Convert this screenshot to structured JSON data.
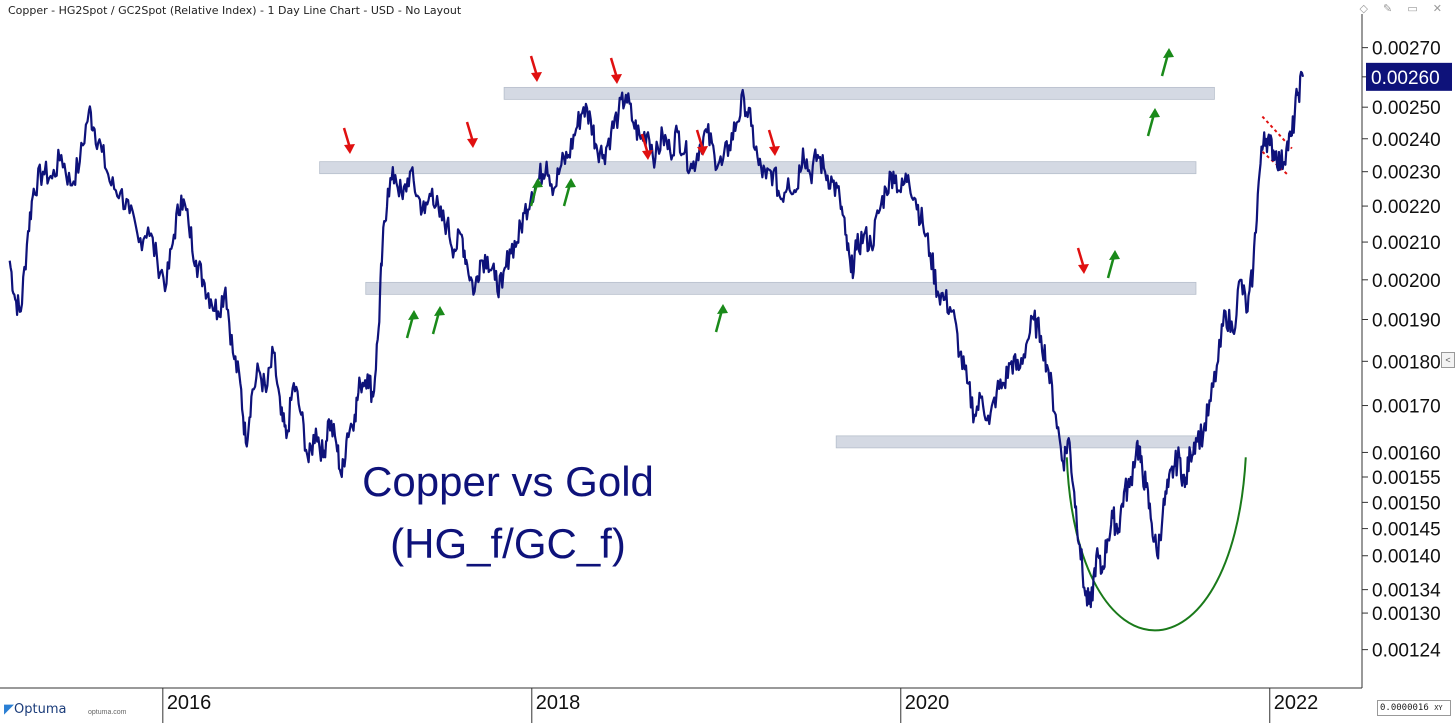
{
  "header": {
    "title": "Copper - HG2Spot / GC2Spot (Relative Index) - 1 Day Line Chart - USD - No Layout"
  },
  "footer": {
    "brand": "Optuma",
    "brand_url": "optuma.com",
    "xy_readout": "0.0000016",
    "xy_label": "XY"
  },
  "colors": {
    "price_line": "#0e127a",
    "band": "#cfd5e0",
    "resistance_arrow": "#e01010",
    "support_arrow": "#1a8a1a",
    "bowl": "#1a7a1a",
    "trendline": "#e01010",
    "last_value_bg": "#0e127a"
  },
  "chart_data": {
    "type": "line",
    "title": "Copper vs Gold",
    "subtitle": "(HG_f/GC_f)",
    "yscale": "log",
    "ylim": [
      0.00118,
      0.00282
    ],
    "xlim": [
      2015.15,
      2022.5
    ],
    "y_ticks": [
      "0.00270",
      "0.00260",
      "0.00250",
      "0.00240",
      "0.00230",
      "0.00220",
      "0.00210",
      "0.00200",
      "0.00190",
      "0.00180",
      "0.00170",
      "0.00160",
      "0.00155",
      "0.00150",
      "0.00145",
      "0.00140",
      "0.00134",
      "0.00130",
      "0.00124"
    ],
    "x_ticks": [
      "2016",
      "2018",
      "2020",
      "2022"
    ],
    "last_value": "0.00260",
    "bands": [
      {
        "from": 2017.85,
        "to": 2021.7,
        "y": 0.002545
      },
      {
        "from": 2016.85,
        "to": 2021.6,
        "y": 0.002312
      },
      {
        "from": 2017.1,
        "to": 2021.6,
        "y": 0.001978
      },
      {
        "from": 2019.65,
        "to": 2021.6,
        "y": 0.001622
      }
    ],
    "series": [
      {
        "points": [
          [
            2015.17,
            0.00205
          ],
          [
            2015.2,
            0.00195
          ],
          [
            2015.23,
            0.00192
          ],
          [
            2015.27,
            0.00213
          ],
          [
            2015.3,
            0.00225
          ],
          [
            2015.35,
            0.0023
          ],
          [
            2015.4,
            0.00228
          ],
          [
            2015.45,
            0.00235
          ],
          [
            2015.5,
            0.00226
          ],
          [
            2015.55,
            0.00233
          ],
          [
            2015.6,
            0.00249
          ],
          [
            2015.63,
            0.00243
          ],
          [
            2015.67,
            0.00236
          ],
          [
            2015.72,
            0.00226
          ],
          [
            2015.77,
            0.00224
          ],
          [
            2015.82,
            0.00218
          ],
          [
            2015.87,
            0.0021
          ],
          [
            2015.92,
            0.00214
          ],
          [
            2015.97,
            0.00205
          ],
          [
            2016.02,
            0.00199
          ],
          [
            2016.06,
            0.00212
          ],
          [
            2016.1,
            0.00223
          ],
          [
            2016.14,
            0.00215
          ],
          [
            2016.18,
            0.00205
          ],
          [
            2016.22,
            0.002
          ],
          [
            2016.26,
            0.00195
          ],
          [
            2016.3,
            0.00192
          ],
          [
            2016.34,
            0.00198
          ],
          [
            2016.38,
            0.00182
          ],
          [
            2016.42,
            0.00175
          ],
          [
            2016.45,
            0.00162
          ],
          [
            2016.48,
            0.00172
          ],
          [
            2016.52,
            0.00178
          ],
          [
            2016.56,
            0.00173
          ],
          [
            2016.6,
            0.00182
          ],
          [
            2016.64,
            0.00168
          ],
          [
            2016.67,
            0.00163
          ],
          [
            2016.71,
            0.00175
          ],
          [
            2016.75,
            0.00168
          ],
          [
            2016.79,
            0.00158
          ],
          [
            2016.83,
            0.00165
          ],
          [
            2016.87,
            0.00159
          ],
          [
            2016.9,
            0.00167
          ],
          [
            2016.94,
            0.00162
          ],
          [
            2016.97,
            0.00155
          ],
          [
            2017.0,
            0.00164
          ],
          [
            2017.04,
            0.00168
          ],
          [
            2017.07,
            0.00175
          ],
          [
            2017.11,
            0.00177
          ],
          [
            2017.14,
            0.00172
          ],
          [
            2017.17,
            0.00188
          ],
          [
            2017.19,
            0.00208
          ],
          [
            2017.22,
            0.00225
          ],
          [
            2017.26,
            0.00229
          ],
          [
            2017.3,
            0.00222
          ],
          [
            2017.34,
            0.0023
          ],
          [
            2017.38,
            0.00223
          ],
          [
            2017.42,
            0.00218
          ],
          [
            2017.46,
            0.00225
          ],
          [
            2017.5,
            0.00217
          ],
          [
            2017.54,
            0.00215
          ],
          [
            2017.58,
            0.00208
          ],
          [
            2017.62,
            0.00212
          ],
          [
            2017.65,
            0.00204
          ],
          [
            2017.69,
            0.00197
          ],
          [
            2017.72,
            0.00205
          ],
          [
            2017.76,
            0.00206
          ],
          [
            2017.8,
            0.002
          ],
          [
            2017.84,
            0.00198
          ],
          [
            2017.88,
            0.00208
          ],
          [
            2017.92,
            0.0021
          ],
          [
            2017.96,
            0.00218
          ],
          [
            2018.0,
            0.00224
          ],
          [
            2018.04,
            0.00228
          ],
          [
            2018.08,
            0.00233
          ],
          [
            2018.12,
            0.00225
          ],
          [
            2018.16,
            0.00232
          ],
          [
            2018.2,
            0.00235
          ],
          [
            2018.24,
            0.00243
          ],
          [
            2018.28,
            0.0025
          ],
          [
            2018.32,
            0.00246
          ],
          [
            2018.35,
            0.00238
          ],
          [
            2018.39,
            0.00235
          ],
          [
            2018.43,
            0.00242
          ],
          [
            2018.47,
            0.00248
          ],
          [
            2018.51,
            0.00254
          ],
          [
            2018.55,
            0.00245
          ],
          [
            2018.59,
            0.0024
          ],
          [
            2018.63,
            0.00242
          ],
          [
            2018.67,
            0.00234
          ],
          [
            2018.71,
            0.00241
          ],
          [
            2018.75,
            0.00236
          ],
          [
            2018.79,
            0.00242
          ],
          [
            2018.83,
            0.00236
          ],
          [
            2018.87,
            0.00231
          ],
          [
            2018.91,
            0.00238
          ],
          [
            2018.95,
            0.00242
          ],
          [
            2018.99,
            0.00235
          ],
          [
            2019.03,
            0.00232
          ],
          [
            2019.07,
            0.00238
          ],
          [
            2019.11,
            0.00245
          ],
          [
            2019.15,
            0.00253
          ],
          [
            2019.19,
            0.00244
          ],
          [
            2019.23,
            0.00232
          ],
          [
            2019.27,
            0.00228
          ],
          [
            2019.31,
            0.0023
          ],
          [
            2019.35,
            0.00222
          ],
          [
            2019.39,
            0.00228
          ],
          [
            2019.43,
            0.00224
          ],
          [
            2019.47,
            0.00237
          ],
          [
            2019.51,
            0.00229
          ],
          [
            2019.55,
            0.00235
          ],
          [
            2019.59,
            0.0023
          ],
          [
            2019.63,
            0.00227
          ],
          [
            2019.67,
            0.00222
          ],
          [
            2019.7,
            0.00212
          ],
          [
            2019.73,
            0.00202
          ],
          [
            2019.76,
            0.00208
          ],
          [
            2019.8,
            0.00212
          ],
          [
            2019.84,
            0.00209
          ],
          [
            2019.88,
            0.00218
          ],
          [
            2019.92,
            0.00225
          ],
          [
            2019.96,
            0.0023
          ],
          [
            2020.0,
            0.00224
          ],
          [
            2020.04,
            0.00229
          ],
          [
            2020.08,
            0.00222
          ],
          [
            2020.12,
            0.00215
          ],
          [
            2020.16,
            0.00207
          ],
          [
            2020.2,
            0.00197
          ],
          [
            2020.24,
            0.00195
          ],
          [
            2020.28,
            0.00192
          ],
          [
            2020.32,
            0.00182
          ],
          [
            2020.36,
            0.00175
          ],
          [
            2020.4,
            0.00168
          ],
          [
            2020.44,
            0.00172
          ],
          [
            2020.48,
            0.00166
          ],
          [
            2020.52,
            0.00173
          ],
          [
            2020.56,
            0.00175
          ],
          [
            2020.6,
            0.0018
          ],
          [
            2020.64,
            0.00178
          ],
          [
            2020.68,
            0.00184
          ],
          [
            2020.72,
            0.0019
          ],
          [
            2020.76,
            0.00186
          ],
          [
            2020.8,
            0.00178
          ],
          [
            2020.84,
            0.00168
          ],
          [
            2020.88,
            0.00158
          ],
          [
            2020.91,
            0.00163
          ],
          [
            2020.94,
            0.00152
          ],
          [
            2020.97,
            0.00142
          ],
          [
            2021.0,
            0.00133
          ],
          [
            2021.03,
            0.00131
          ],
          [
            2021.06,
            0.0014
          ],
          [
            2021.09,
            0.00137
          ],
          [
            2021.12,
            0.00143
          ],
          [
            2021.15,
            0.00147
          ],
          [
            2021.18,
            0.00145
          ],
          [
            2021.21,
            0.00152
          ],
          [
            2021.24,
            0.00153
          ],
          [
            2021.28,
            0.00162
          ],
          [
            2021.3,
            0.00158
          ],
          [
            2021.33,
            0.00153
          ],
          [
            2021.36,
            0.00146
          ],
          [
            2021.39,
            0.0014
          ],
          [
            2021.42,
            0.00148
          ],
          [
            2021.45,
            0.00153
          ],
          [
            2021.48,
            0.00157
          ],
          [
            2021.51,
            0.00159
          ],
          [
            2021.54,
            0.00153
          ],
          [
            2021.57,
            0.0016
          ],
          [
            2021.6,
            0.00163
          ],
          [
            2021.64,
            0.00164
          ],
          [
            2021.68,
            0.00171
          ],
          [
            2021.72,
            0.0018
          ],
          [
            2021.76,
            0.00192
          ],
          [
            2021.8,
            0.00187
          ],
          [
            2021.84,
            0.002
          ],
          [
            2021.88,
            0.00192
          ],
          [
            2021.91,
            0.00203
          ],
          [
            2021.94,
            0.00227
          ],
          [
            2021.97,
            0.00242
          ],
          [
            2022.0,
            0.00238
          ],
          [
            2022.03,
            0.00236
          ],
          [
            2022.06,
            0.00232
          ],
          [
            2022.09,
            0.00237
          ],
          [
            2022.12,
            0.00241
          ],
          [
            2022.15,
            0.00254
          ],
          [
            2022.18,
            0.0026
          ]
        ]
      }
    ],
    "annotations": [
      {
        "label": "Copper vs Gold"
      },
      {
        "label": "(HG_f/GC_f)"
      }
    ],
    "grid": false,
    "legend": "none"
  }
}
